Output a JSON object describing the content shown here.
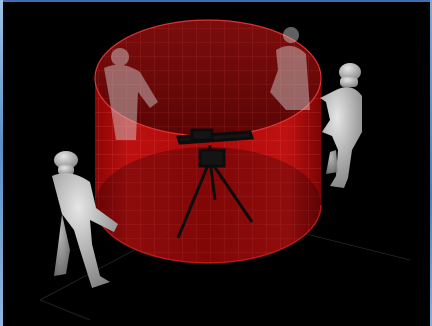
{
  "scene": {
    "background_color": "#000000",
    "cylinder_color": "#cc0b0b",
    "figure_color": "#c8c8c8",
    "frame_color": "#5c8fc7"
  }
}
